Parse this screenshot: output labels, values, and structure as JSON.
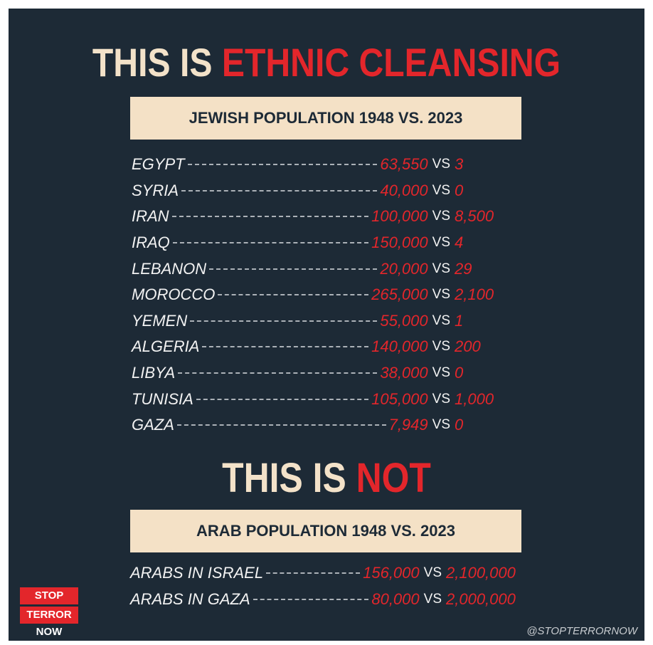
{
  "title": {
    "lead": "THIS IS",
    "highlight": "ETHNIC CLEANSING"
  },
  "vs": "VS",
  "jewish": {
    "heading": "JEWISH POPULATION 1948 VS. 2023",
    "rows": [
      {
        "label": "EGYPT",
        "before": "63,550",
        "after": "3"
      },
      {
        "label": "SYRIA",
        "before": "40,000",
        "after": "0"
      },
      {
        "label": "IRAN",
        "before": "100,000",
        "after": "8,500"
      },
      {
        "label": "IRAQ",
        "before": "150,000",
        "after": "4"
      },
      {
        "label": "LEBANON",
        "before": "20,000",
        "after": "29"
      },
      {
        "label": "MOROCCO",
        "before": "265,000",
        "after": "2,100"
      },
      {
        "label": "YEMEN",
        "before": "55,000",
        "after": "1"
      },
      {
        "label": "ALGERIA",
        "before": "140,000",
        "after": "200"
      },
      {
        "label": "LIBYA",
        "before": "38,000",
        "after": "0"
      },
      {
        "label": "TUNISIA",
        "before": "105,000",
        "after": "1,000"
      },
      {
        "label": "GAZA",
        "before": "7,949",
        "after": "0"
      }
    ]
  },
  "subtitle": {
    "lead": "THIS IS",
    "highlight": "NOT"
  },
  "arab": {
    "heading": "ARAB POPULATION 1948 VS. 2023",
    "rows": [
      {
        "label": "ARABS IN ISRAEL",
        "before": "156,000",
        "after": "2,100,000"
      },
      {
        "label": "ARABS IN GAZA",
        "before": "80,000",
        "after": "2,000,000"
      }
    ]
  },
  "logo": [
    "STOP",
    "TERROR",
    "NOW"
  ],
  "handle": "@STOPTERRORNOW"
}
